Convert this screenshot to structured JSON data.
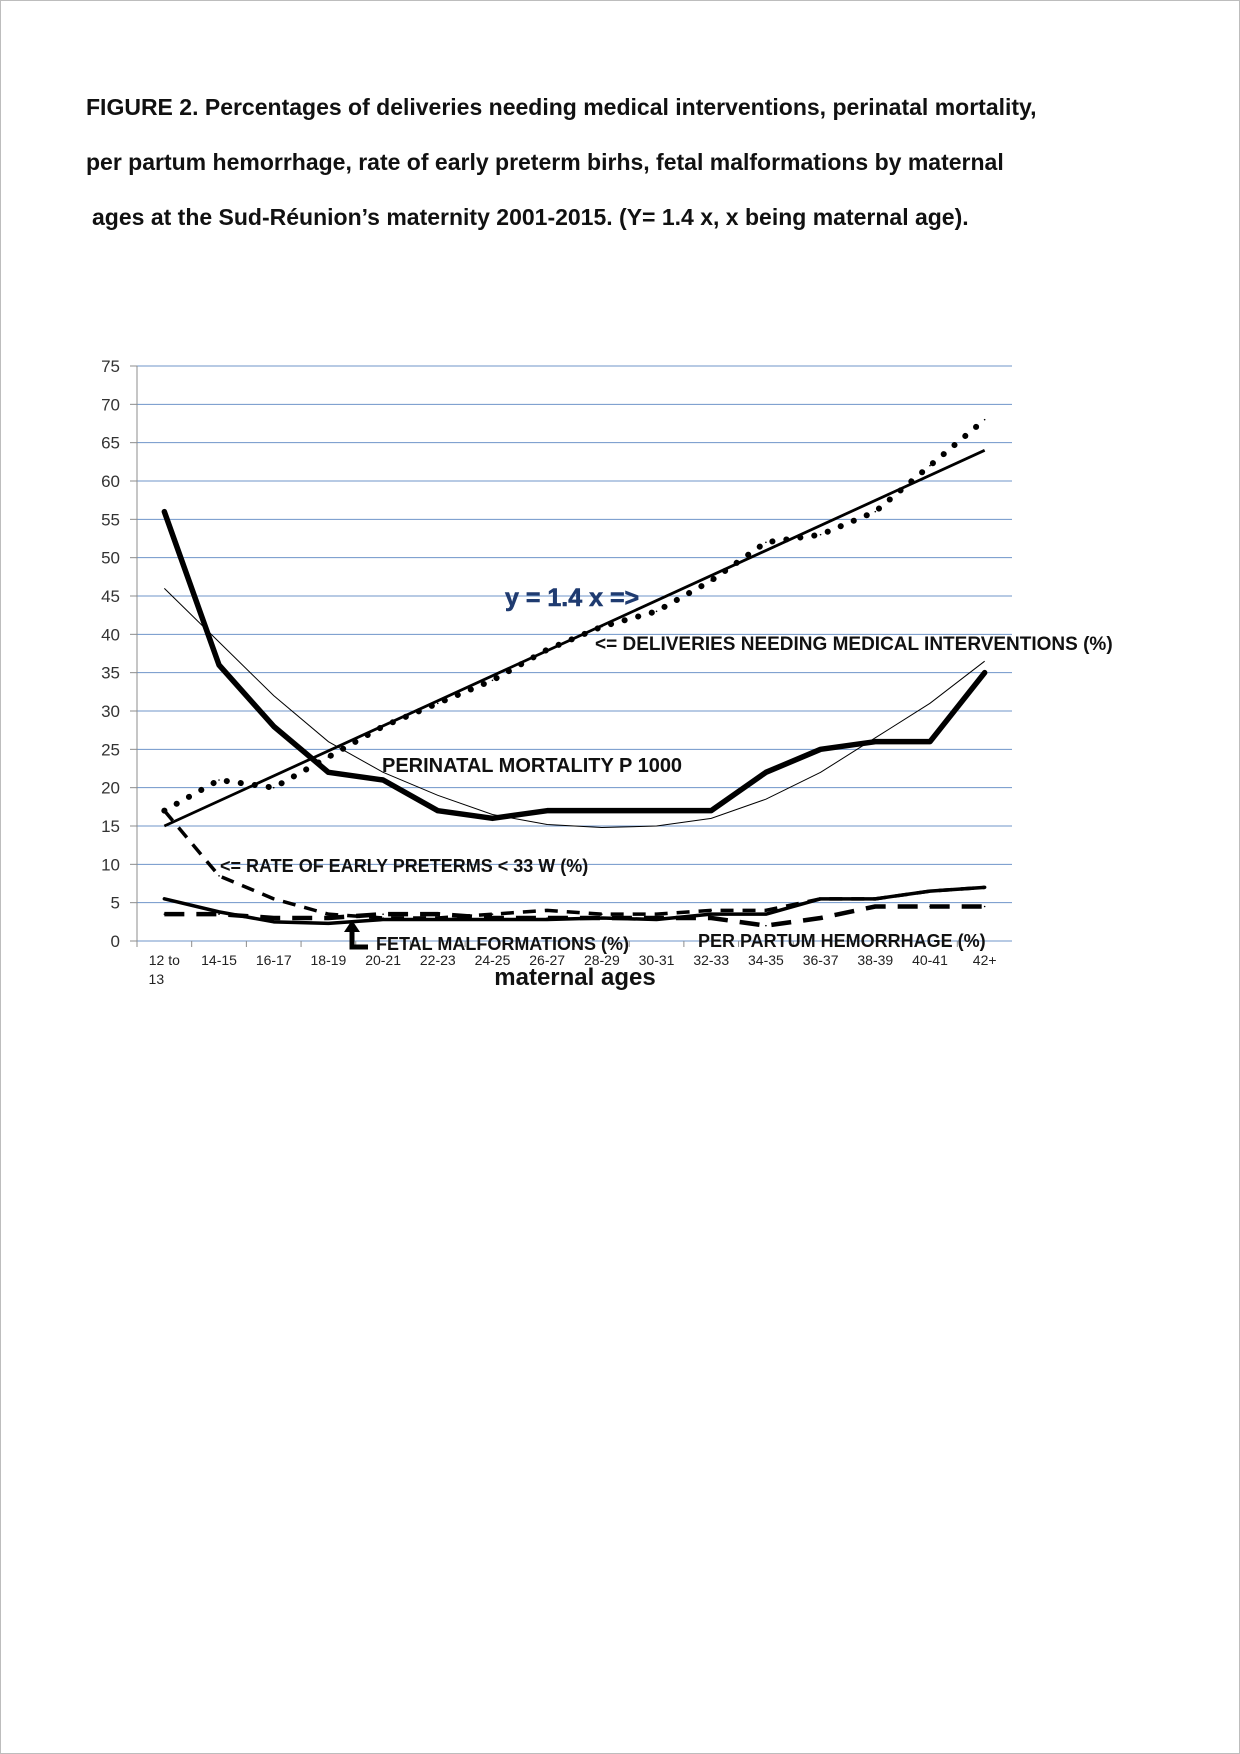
{
  "caption": {
    "line1": "FIGURE  2.  Percentages of deliveries needing medical interventions, perinatal mortality,",
    "line2": "per partum hemorrhage, rate of early preterm birhs, fetal malformations by maternal",
    "line3": "ages at the Sud-Réunion’s maternity 2001-2015. (Y= 1.4 x, x being maternal age)."
  },
  "chart_data": {
    "type": "line",
    "categories": [
      "12 to 13",
      "14-15",
      "16-17",
      "18-19",
      "20-21",
      "22-23",
      "24-25",
      "26-27",
      "28-29",
      "30-31",
      "32-33",
      "34-35",
      "36-37",
      "38-39",
      "40-41",
      "42+"
    ],
    "xlabel": "maternal ages",
    "ylabel": "",
    "ylim": [
      0,
      75
    ],
    "yticks": [
      0,
      5,
      10,
      15,
      20,
      25,
      30,
      35,
      40,
      45,
      50,
      55,
      60,
      65,
      70,
      75
    ],
    "grid": true,
    "legend": "none",
    "series": [
      {
        "name": "DELIVERIES NEEDING MEDICAL INTERVENTIONS (%)",
        "style": "dotted",
        "values": [
          17,
          21,
          20,
          24,
          28,
          31,
          34,
          38,
          41,
          43,
          47,
          52,
          53,
          56,
          62,
          68
        ]
      },
      {
        "name": "PERINATAL MORTALITY P 1000",
        "style": "solid-thick",
        "values": [
          56,
          36,
          28,
          22,
          21,
          17,
          16,
          17,
          17,
          17,
          17,
          22,
          25,
          26,
          26,
          35
        ]
      },
      {
        "name": "RATE OF EARLY PRETERMS < 33 W (%)",
        "style": "dashed",
        "values": [
          17,
          8.5,
          5.5,
          3.5,
          3.0,
          3.0,
          3.5,
          4.0,
          3.5,
          3.5,
          4.0,
          4.0,
          5.5,
          5.5,
          6.5,
          7.0
        ]
      },
      {
        "name": "FETAL MALFORMATIONS (%)",
        "style": "solid",
        "values": [
          5.5,
          3.8,
          2.5,
          2.3,
          2.8,
          2.8,
          2.8,
          2.8,
          3.0,
          2.8,
          3.5,
          3.5,
          5.5,
          5.5,
          6.5,
          7.0
        ]
      },
      {
        "name": "PER PARTUM HEMORRHAGE (%)",
        "style": "long-dash",
        "values": [
          3.5,
          3.5,
          3.0,
          3.0,
          3.5,
          3.5,
          3.0,
          3.0,
          3.0,
          3.0,
          3.0,
          2.0,
          3.0,
          4.5,
          4.5,
          4.5
        ]
      }
    ],
    "trendlines": [
      {
        "kind": "linear",
        "from": 15,
        "to": 64
      },
      {
        "kind": "polynomial",
        "points": [
          46,
          39,
          32,
          26,
          22,
          19,
          16.5,
          15.2,
          14.8,
          15.0,
          16.0,
          18.5,
          22.0,
          26.5,
          31.0,
          36.5
        ]
      }
    ],
    "annotations": {
      "trend_label": "y = 1.4 x =>",
      "interventions_label": "<= DELIVERIES NEEDING MEDICAL INTERVENTIONS (%)",
      "mortality_label": "PERINATAL MORTALITY P 1000",
      "preterm_label": "<= RATE OF EARLY PRETERMS < 33 W (%)",
      "malformations_label": "FETAL MALFORMATIONS (%)",
      "hemorrhage_label": "PER PARTUM HEMORRHAGE (%)"
    },
    "colors": {
      "grid": "#6f95c9",
      "axis": "#8c8c8c",
      "line": "#000000",
      "trend_label": "#1f3b70"
    }
  }
}
